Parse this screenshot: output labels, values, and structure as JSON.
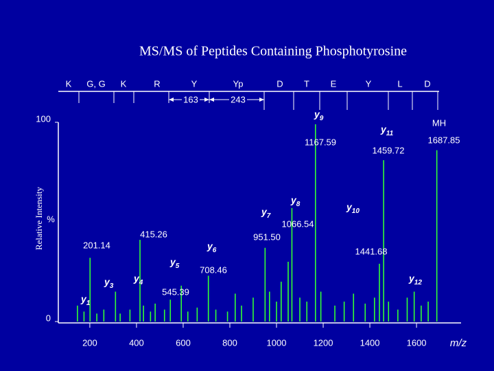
{
  "chart_data": {
    "type": "spectrum",
    "title": "MS/MS of Peptides Containing Phosphotyrosine",
    "ylabel": "Relative Intensity",
    "xlabel": "m/z",
    "percent_label": "%",
    "color": "#33ff33",
    "xlim": [
      65,
      1785
    ],
    "ylim": [
      0,
      100
    ],
    "xticks": [
      200,
      400,
      600,
      800,
      1000,
      1200,
      1400,
      1600
    ],
    "yticks": [
      0,
      100
    ],
    "x": [
      147,
      175,
      201,
      230,
      260,
      310,
      330,
      372,
      415,
      430,
      460,
      480,
      520,
      545,
      592,
      620,
      660,
      708,
      740,
      790,
      823,
      850,
      900,
      951,
      970,
      1000,
      1020,
      1050,
      1066,
      1100,
      1130,
      1167,
      1190,
      1250,
      1290,
      1330,
      1380,
      1420,
      1441,
      1459,
      1480,
      1520,
      1560,
      1590,
      1620,
      1650,
      1687
    ],
    "values": [
      8,
      5,
      32,
      4,
      6,
      15,
      4,
      6,
      41,
      8,
      5,
      9,
      6,
      11,
      18,
      5,
      7,
      23,
      6,
      5,
      14,
      8,
      12,
      37,
      15,
      10,
      20,
      30,
      57,
      12,
      10,
      99,
      15,
      8,
      10,
      14,
      9,
      12,
      29,
      81,
      10,
      6,
      12,
      15,
      8,
      10,
      86
    ],
    "sequence": [
      "K",
      "G, G",
      "K",
      "R",
      "Y",
      "Yp",
      "D",
      "T",
      "E",
      "Y",
      "L",
      "D"
    ],
    "mass_diffs": [
      "163",
      "243"
    ],
    "ions": [
      {
        "text": "y",
        "sub": "9"
      },
      {
        "text": "y",
        "sub": "11"
      },
      {
        "text": "y",
        "sub": "8"
      },
      {
        "text": "y",
        "sub": "7"
      },
      {
        "text": "y",
        "sub": "10"
      },
      {
        "text": "y",
        "sub": "6"
      },
      {
        "text": "y",
        "sub": "5"
      },
      {
        "text": "y",
        "sub": "3"
      },
      {
        "text": "y",
        "sub": "4"
      },
      {
        "text": "y",
        "sub": "1"
      },
      {
        "text": "y",
        "sub": "12"
      }
    ],
    "mh_label": "MH",
    "mass_labels": [
      "1167.59",
      "1459.72",
      "1687.85",
      "1066.54",
      "951.50",
      "415.26",
      "201.14",
      "708.46",
      "545.39",
      "1441.68"
    ]
  }
}
